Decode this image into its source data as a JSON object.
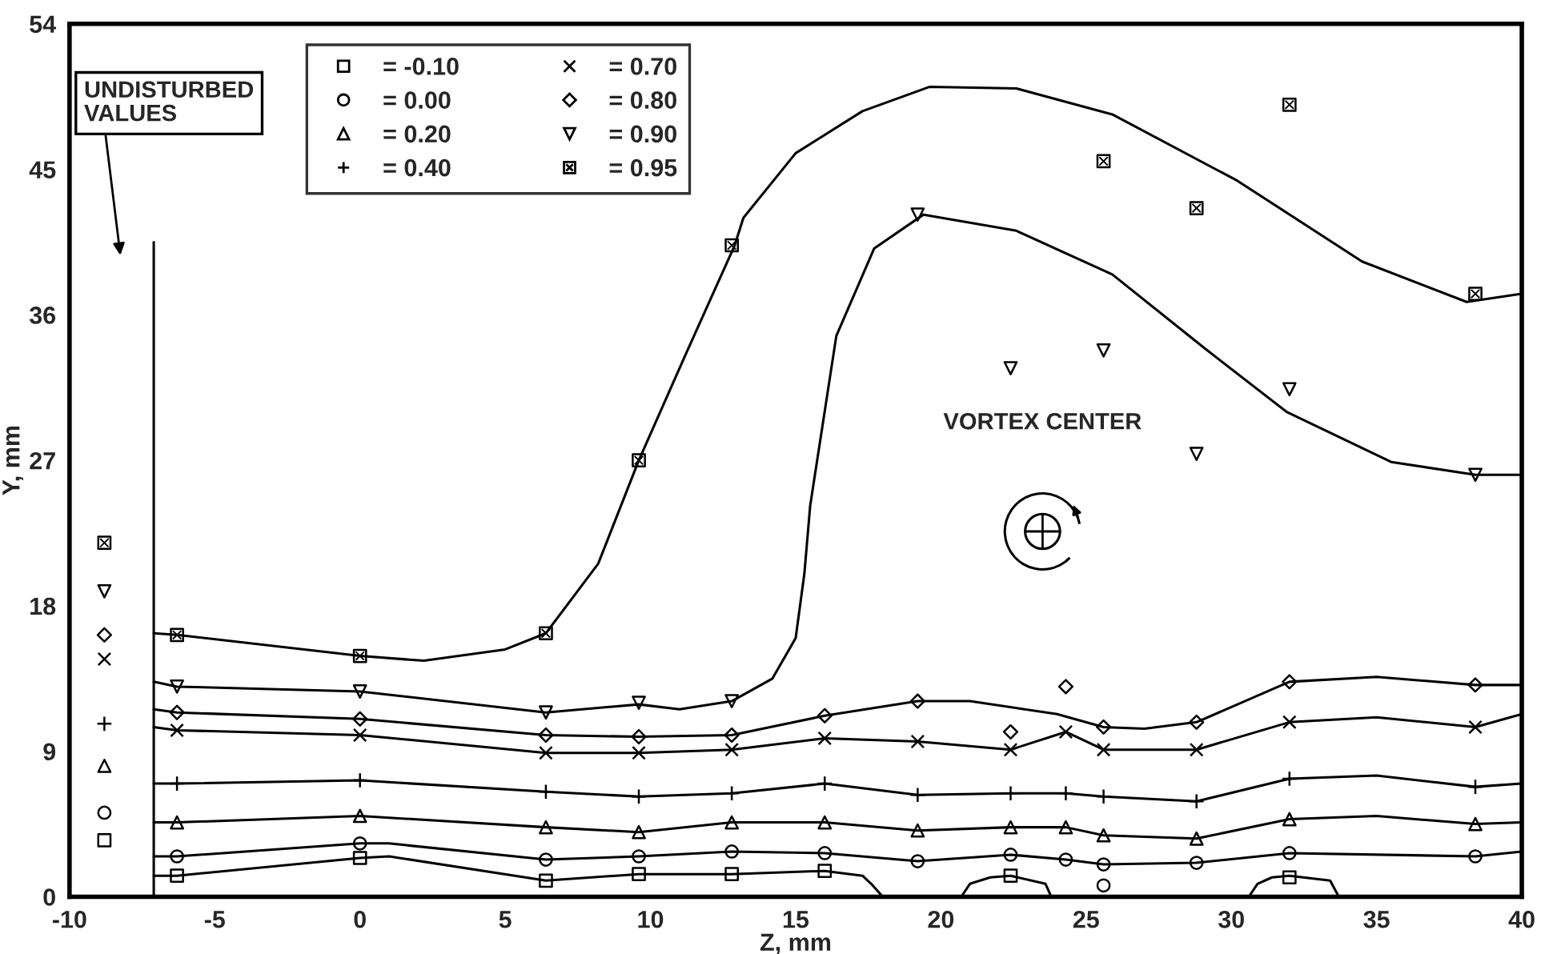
{
  "chart_data": {
    "type": "scatter",
    "xlabel": "Z, mm",
    "ylabel": "Y, mm",
    "xlim": [
      -10,
      40
    ],
    "xticks": [
      -10,
      -5,
      0,
      5,
      10,
      15,
      20,
      25,
      30,
      35,
      40
    ],
    "ylim": [
      0,
      54
    ],
    "yticks": [
      0,
      9,
      18,
      27,
      36,
      45,
      54
    ],
    "grid": false,
    "legend": "top left",
    "annotations": [
      "UNDISTURBED\nVALUES",
      "VORTEX CENTER"
    ],
    "series": [
      {
        "name": "= -0.10",
        "marker": "square",
        "color": "#000000",
        "x": [
          -8.8,
          -6.3,
          0,
          6.4,
          9.6,
          12.8,
          16.0,
          22.4,
          32.0
        ],
        "values": [
          3.5,
          1.3,
          2.4,
          1.0,
          1.4,
          1.4,
          1.6,
          1.3,
          1.2
        ]
      },
      {
        "name": "= 0.00",
        "marker": "circle",
        "color": "#000000",
        "x": [
          -8.8,
          -6.3,
          0,
          6.4,
          9.6,
          12.8,
          16.0,
          19.2,
          22.4,
          24.3,
          25.6,
          25.6,
          28.8,
          32.0,
          38.4
        ],
        "values": [
          5.2,
          2.5,
          3.3,
          2.3,
          2.5,
          2.8,
          2.7,
          2.2,
          2.6,
          2.3,
          2.0,
          0.7,
          2.1,
          2.7,
          2.5
        ]
      },
      {
        "name": "= 0.20",
        "marker": "triangle",
        "color": "#000000",
        "x": [
          -8.8,
          -6.3,
          0,
          6.4,
          9.6,
          12.8,
          16.0,
          19.2,
          22.4,
          24.3,
          25.6,
          28.8,
          32.0,
          38.4
        ],
        "values": [
          8.1,
          4.6,
          5.0,
          4.3,
          4.0,
          4.6,
          4.6,
          4.1,
          4.3,
          4.3,
          3.8,
          3.6,
          4.8,
          4.5
        ]
      },
      {
        "name": "= 0.40",
        "marker": "cross",
        "color": "#000000",
        "x": [
          -8.8,
          -6.3,
          0,
          6.4,
          9.6,
          12.8,
          16.0,
          19.2,
          22.4,
          24.3,
          25.6,
          28.8,
          32.0,
          38.4
        ],
        "values": [
          10.7,
          7.0,
          7.2,
          6.5,
          6.2,
          6.4,
          7.0,
          6.3,
          6.4,
          6.4,
          6.2,
          5.9,
          7.3,
          6.8
        ]
      },
      {
        "name": "= 0.70",
        "marker": "x",
        "color": "#000000",
        "x": [
          -8.8,
          -6.3,
          0,
          6.4,
          9.6,
          12.8,
          16.0,
          19.2,
          22.4,
          24.3,
          25.6,
          28.8,
          32.0,
          38.4
        ],
        "values": [
          14.7,
          10.3,
          10.0,
          8.9,
          8.9,
          9.1,
          9.8,
          9.6,
          9.1,
          10.2,
          9.1,
          9.1,
          10.8,
          10.5
        ]
      },
      {
        "name": "= 0.80",
        "marker": "diamond",
        "color": "#000000",
        "x": [
          -8.8,
          -6.3,
          0,
          6.4,
          9.6,
          12.8,
          16.0,
          19.2,
          22.4,
          24.3,
          25.6,
          28.8,
          32.0,
          38.4
        ],
        "values": [
          16.2,
          11.4,
          11.0,
          10.0,
          9.9,
          10.0,
          11.2,
          12.1,
          10.2,
          13.0,
          10.5,
          10.8,
          13.3,
          13.1
        ]
      },
      {
        "name": "= 0.90",
        "marker": "triangle_down",
        "color": "#000000",
        "x": [
          -8.8,
          -6.3,
          0,
          6.4,
          9.6,
          12.8,
          19.2,
          22.4,
          25.6,
          28.8,
          32.0,
          38.4
        ],
        "values": [
          18.9,
          13.0,
          12.7,
          11.4,
          12.0,
          12.1,
          42.2,
          32.7,
          33.8,
          27.4,
          31.4,
          26.1
        ]
      },
      {
        "name": "= 0.95",
        "marker": "square_x",
        "color": "#000000",
        "x": [
          -8.8,
          -6.3,
          0,
          6.4,
          9.6,
          12.8,
          25.6,
          28.8,
          32.0,
          38.4
        ],
        "values": [
          21.9,
          16.2,
          14.9,
          16.3,
          27.0,
          40.3,
          45.5,
          42.6,
          49.0,
          37.3
        ]
      },
      {
        "type": "line",
        "color": "#000000",
        "x": [
          -7.1,
          -7.1
        ],
        "values": [
          0,
          40.5
        ]
      },
      {
        "type": "line",
        "color": "#000000",
        "x": [
          -7.1,
          -6.3,
          0,
          1,
          6.4,
          9.6,
          12.8,
          16.0,
          17.3,
          17.6,
          18.0
        ],
        "values": [
          1.3,
          1.3,
          2.4,
          2.5,
          1.0,
          1.4,
          1.4,
          1.6,
          1.3,
          0.8,
          0
        ]
      },
      {
        "type": "line",
        "color": "#000000",
        "x": [
          20.7,
          21.0,
          21.7,
          22.4,
          23.6,
          23.8
        ],
        "values": [
          0,
          0.8,
          1.2,
          1.3,
          0.8,
          0
        ]
      },
      {
        "type": "line",
        "color": "#000000",
        "x": [
          30.6,
          30.9,
          31.4,
          32.0,
          33.4,
          33.7
        ],
        "values": [
          0,
          0.8,
          1.2,
          1.3,
          1.0,
          0
        ]
      },
      {
        "type": "line",
        "color": "#000000",
        "x": [
          -7.1,
          -6.3,
          0,
          1,
          6.4,
          9.6,
          12.8,
          16.0,
          19.2,
          22.4,
          24.3,
          25.6,
          28.8,
          32.0,
          38.4,
          40
        ],
        "values": [
          2.5,
          2.5,
          3.3,
          3.3,
          2.3,
          2.5,
          2.8,
          2.7,
          2.2,
          2.6,
          2.3,
          2.0,
          2.1,
          2.7,
          2.5,
          2.8
        ]
      },
      {
        "type": "line",
        "color": "#000000",
        "x": [
          -7.1,
          -6.3,
          0,
          6.4,
          9.6,
          12.8,
          16.0,
          19.2,
          22.4,
          24.3,
          25.6,
          28.8,
          32.0,
          35,
          38.4,
          40
        ],
        "values": [
          4.6,
          4.6,
          5.0,
          4.3,
          4.0,
          4.6,
          4.6,
          4.1,
          4.3,
          4.3,
          3.8,
          3.6,
          4.8,
          5.0,
          4.5,
          4.6
        ]
      },
      {
        "type": "line",
        "color": "#000000",
        "x": [
          -7.1,
          -6.3,
          0,
          6.4,
          9.6,
          12.8,
          16.0,
          19.2,
          22.4,
          24.3,
          25.6,
          28.8,
          32.0,
          35,
          38.4,
          40
        ],
        "values": [
          7.0,
          7.0,
          7.2,
          6.5,
          6.2,
          6.4,
          7.0,
          6.3,
          6.4,
          6.4,
          6.2,
          5.9,
          7.3,
          7.5,
          6.8,
          7.0
        ]
      },
      {
        "type": "line",
        "color": "#000000",
        "x": [
          -7.1,
          -6.3,
          0,
          6.4,
          9.6,
          12.8,
          16.0,
          19.2,
          22.4,
          24.3,
          25.6,
          28.8,
          32.0,
          35,
          38.4,
          40
        ],
        "values": [
          10.5,
          10.3,
          10.0,
          8.9,
          8.9,
          9.1,
          9.8,
          9.6,
          9.1,
          10.2,
          9.1,
          9.1,
          10.8,
          11.1,
          10.5,
          11.3
        ]
      },
      {
        "type": "line",
        "color": "#000000",
        "x": [
          -7.1,
          -6.3,
          0,
          6.4,
          9.6,
          12.8,
          16.0,
          19.2,
          21,
          24,
          25.6,
          27,
          28.8,
          32.0,
          35,
          38.4,
          40
        ],
        "values": [
          11.6,
          11.4,
          11.0,
          10.0,
          9.9,
          10.0,
          11.2,
          12.1,
          12.1,
          11.3,
          10.5,
          10.4,
          10.8,
          13.3,
          13.6,
          13.1,
          13.1
        ]
      },
      {
        "type": "line",
        "color": "#000000",
        "x": [
          -7.1,
          -6.3,
          0,
          6.4,
          9.6,
          11,
          12.8,
          14.2,
          15.0,
          15.3,
          15.5,
          16.4,
          17.7,
          19.4,
          22.6,
          25.9,
          29.1,
          31.9,
          35.5,
          38.4,
          40
        ],
        "values": [
          13.3,
          13.0,
          12.7,
          11.4,
          11.9,
          11.6,
          12.1,
          13.5,
          16,
          20,
          24.2,
          34.7,
          40.1,
          42.2,
          41.2,
          38.5,
          33.9,
          30.0,
          26.9,
          26.1,
          26.1
        ]
      },
      {
        "type": "line",
        "color": "#000000",
        "x": [
          -7.1,
          -6.3,
          0,
          2.2,
          5,
          6.4,
          8.2,
          9.6,
          11.2,
          12.9,
          13.2,
          15,
          17.3,
          19.6,
          22.6,
          25.9,
          30.2,
          34.5,
          38.1,
          40
        ],
        "values": [
          16.3,
          16.2,
          14.9,
          14.6,
          15.3,
          16.3,
          20.6,
          27.0,
          33.5,
          40.3,
          42,
          46,
          48.6,
          50.1,
          50,
          48.4,
          44.3,
          39.3,
          36.8,
          37.3
        ]
      }
    ]
  }
}
